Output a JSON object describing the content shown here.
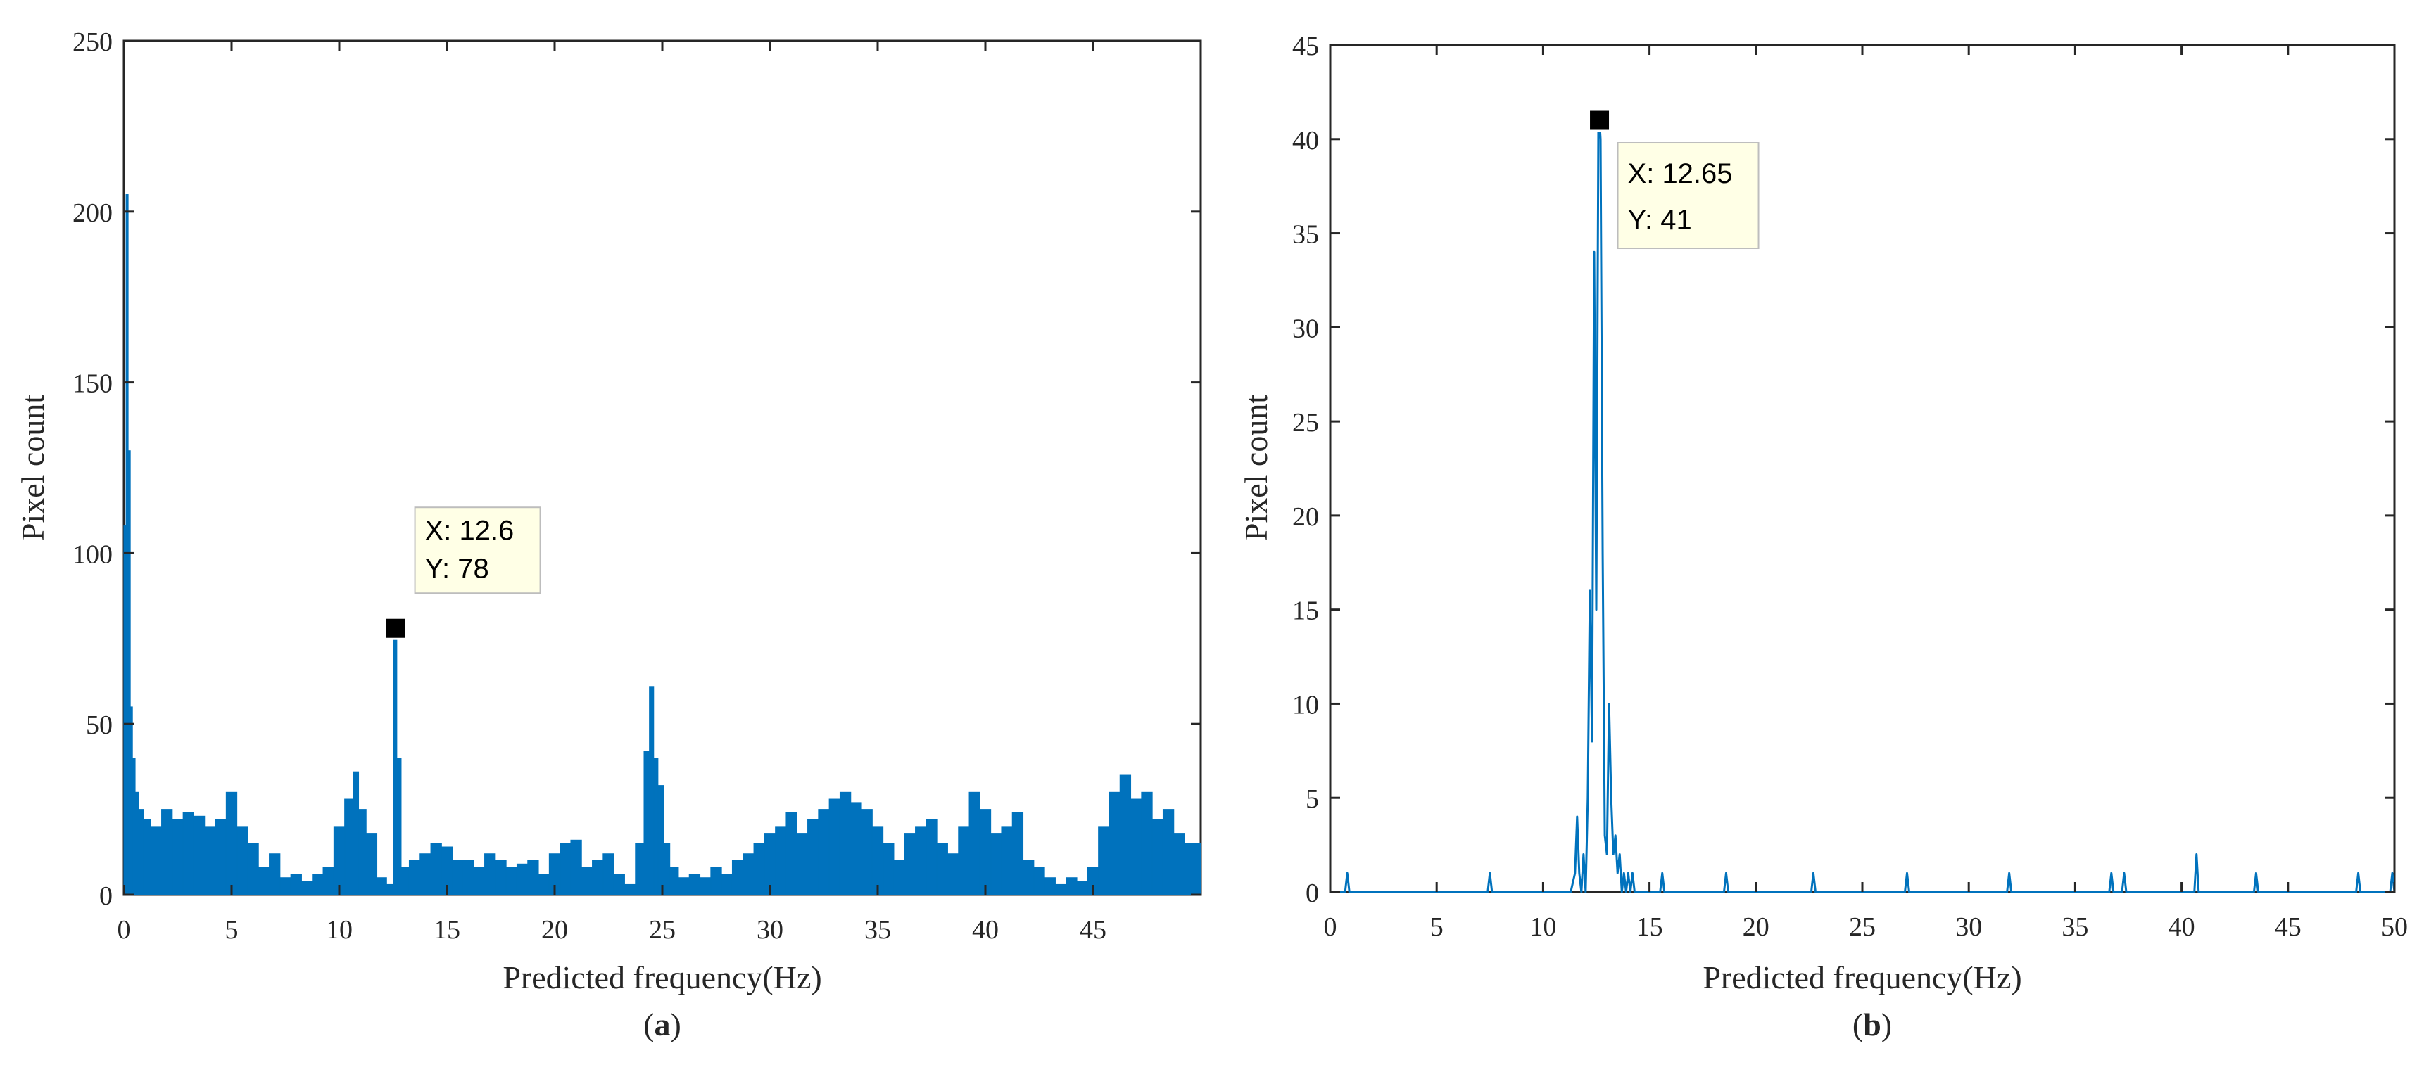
{
  "chart_data": [
    {
      "type": "bar",
      "panel_label": "a",
      "title": "",
      "xlabel": "Predicted frequency(Hz)",
      "ylabel": "Pixel count",
      "xlim": [
        0,
        50
      ],
      "ylim": [
        0,
        250
      ],
      "xticks": [
        "0",
        "5",
        "10",
        "15",
        "20",
        "25",
        "30",
        "35",
        "40",
        "45"
      ],
      "xtick_values": [
        0,
        5,
        10,
        15,
        20,
        25,
        30,
        35,
        40,
        45
      ],
      "yticks": [
        "0",
        "50",
        "100",
        "150",
        "200",
        "250"
      ],
      "ytick_values": [
        0,
        50,
        100,
        150,
        200,
        250
      ],
      "grid": false,
      "series": [
        {
          "name": "histogram",
          "color": "#0072BD",
          "x": [
            0.05,
            0.15,
            0.25,
            0.35,
            0.45,
            0.6,
            0.8,
            1.0,
            1.5,
            2.0,
            2.5,
            3.0,
            3.5,
            4.0,
            4.5,
            5.0,
            5.5,
            6.0,
            6.5,
            7.0,
            7.5,
            8.0,
            8.5,
            9.0,
            9.5,
            10.0,
            10.5,
            10.8,
            11.0,
            11.5,
            12.0,
            12.4,
            12.6,
            12.75,
            13.0,
            13.5,
            14.0,
            14.5,
            15.0,
            15.5,
            16.0,
            16.5,
            17.0,
            17.5,
            18.0,
            18.5,
            19.0,
            19.5,
            20.0,
            20.5,
            21.0,
            21.5,
            22.0,
            22.5,
            23.0,
            23.5,
            24.0,
            24.3,
            24.5,
            24.7,
            24.9,
            25.2,
            25.5,
            26.0,
            26.5,
            27.0,
            27.5,
            28.0,
            28.5,
            29.0,
            29.5,
            30.0,
            30.5,
            31.0,
            31.5,
            32.0,
            32.5,
            33.0,
            33.5,
            34.0,
            34.5,
            35.0,
            35.5,
            36.0,
            36.5,
            37.0,
            37.5,
            38.0,
            38.5,
            39.0,
            39.5,
            40.0,
            40.5,
            41.0,
            41.5,
            42.0,
            42.5,
            43.0,
            43.5,
            44.0,
            44.5,
            45.0,
            45.5,
            46.0,
            46.5,
            47.0,
            47.5,
            48.0,
            48.5,
            49.0,
            49.5,
            49.9
          ],
          "values": [
            108,
            205,
            130,
            55,
            40,
            30,
            25,
            22,
            20,
            25,
            22,
            24,
            23,
            20,
            22,
            30,
            20,
            15,
            8,
            12,
            5,
            6,
            4,
            6,
            8,
            20,
            28,
            36,
            25,
            18,
            5,
            3,
            78,
            40,
            8,
            10,
            12,
            15,
            14,
            10,
            10,
            8,
            12,
            10,
            8,
            9,
            10,
            6,
            12,
            15,
            16,
            8,
            10,
            12,
            6,
            3,
            15,
            42,
            61,
            40,
            32,
            15,
            8,
            5,
            6,
            5,
            8,
            6,
            10,
            12,
            15,
            18,
            20,
            24,
            18,
            22,
            25,
            28,
            30,
            27,
            25,
            20,
            15,
            10,
            18,
            20,
            22,
            15,
            12,
            20,
            30,
            25,
            18,
            20,
            24,
            10,
            8,
            5,
            3,
            5,
            4,
            8,
            20,
            30,
            35,
            28,
            30,
            22,
            25,
            18,
            15,
            15
          ]
        }
      ],
      "annotation": {
        "x": 12.6,
        "y": 78,
        "text_x": "X: 12.6",
        "text_y": "Y: 78"
      }
    },
    {
      "type": "line",
      "panel_label": "b",
      "title": "",
      "xlabel": "Predicted frequency(Hz)",
      "ylabel": "Pixel count",
      "xlim": [
        0,
        50
      ],
      "ylim": [
        0,
        45
      ],
      "xticks": [
        "0",
        "5",
        "10",
        "15",
        "20",
        "25",
        "30",
        "35",
        "40",
        "45",
        "50"
      ],
      "xtick_values": [
        0,
        5,
        10,
        15,
        20,
        25,
        30,
        35,
        40,
        45,
        50
      ],
      "yticks": [
        "0",
        "5",
        "10",
        "15",
        "20",
        "25",
        "30",
        "35",
        "40",
        "45"
      ],
      "ytick_values": [
        0,
        5,
        10,
        15,
        20,
        25,
        30,
        35,
        40,
        45
      ],
      "grid": false,
      "series": [
        {
          "name": "spectrum",
          "color": "#0072BD",
          "x": [
            0,
            0.7,
            0.8,
            0.9,
            7.4,
            7.5,
            7.6,
            11.3,
            11.5,
            11.6,
            11.7,
            11.8,
            11.9,
            12.0,
            12.1,
            12.2,
            12.3,
            12.4,
            12.5,
            12.6,
            12.65,
            12.7,
            12.8,
            12.9,
            13.0,
            13.1,
            13.2,
            13.3,
            13.4,
            13.5,
            13.6,
            13.7,
            13.8,
            13.9,
            14.0,
            14.1,
            14.2,
            14.3,
            14.4,
            15.5,
            15.6,
            15.7,
            18.5,
            18.6,
            18.7,
            22.6,
            22.7,
            22.8,
            27.0,
            27.1,
            27.2,
            31.8,
            31.9,
            32.0,
            36.6,
            36.7,
            36.8,
            37.2,
            37.3,
            37.4,
            40.6,
            40.7,
            40.8,
            43.4,
            43.5,
            43.6,
            48.2,
            48.3,
            48.4,
            49.8,
            49.9,
            50.0
          ],
          "values": [
            0,
            0,
            1,
            0,
            0,
            1,
            0,
            0,
            1,
            4,
            1,
            0,
            2,
            0,
            5,
            16,
            8,
            34,
            15,
            41,
            41,
            40,
            18,
            3,
            2,
            10,
            5,
            2,
            3,
            1,
            2,
            0,
            1,
            0,
            1,
            0,
            1,
            0,
            0,
            0,
            1,
            0,
            0,
            1,
            0,
            0,
            1,
            0,
            0,
            1,
            0,
            0,
            1,
            0,
            0,
            1,
            0,
            0,
            1,
            0,
            0,
            2,
            0,
            0,
            1,
            0,
            0,
            1,
            0,
            0,
            1,
            0
          ]
        }
      ],
      "annotation": {
        "x": 12.65,
        "y": 41,
        "text_x": "X: 12.65",
        "text_y": "Y: 41"
      }
    }
  ]
}
